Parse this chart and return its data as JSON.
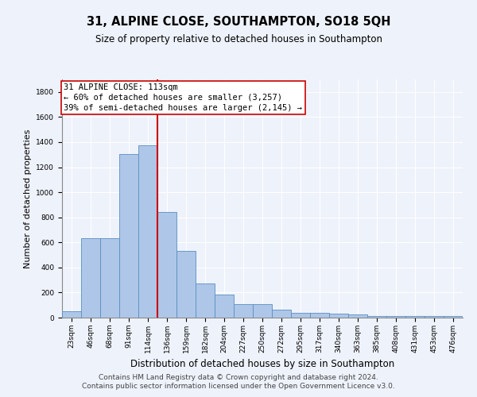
{
  "title": "31, ALPINE CLOSE, SOUTHAMPTON, SO18 5QH",
  "subtitle": "Size of property relative to detached houses in Southampton",
  "xlabel": "Distribution of detached houses by size in Southampton",
  "ylabel": "Number of detached properties",
  "categories": [
    "23sqm",
    "46sqm",
    "68sqm",
    "91sqm",
    "114sqm",
    "136sqm",
    "159sqm",
    "182sqm",
    "204sqm",
    "227sqm",
    "250sqm",
    "272sqm",
    "295sqm",
    "317sqm",
    "340sqm",
    "363sqm",
    "385sqm",
    "408sqm",
    "431sqm",
    "453sqm",
    "476sqm"
  ],
  "values": [
    50,
    635,
    635,
    1305,
    1375,
    845,
    530,
    275,
    185,
    105,
    105,
    65,
    35,
    35,
    30,
    25,
    15,
    15,
    10,
    10,
    15
  ],
  "bar_color": "#aec6e8",
  "bar_edge_color": "#5a8fc0",
  "vline_x_index": 4.5,
  "vline_color": "#cc0000",
  "annotation_text": "31 ALPINE CLOSE: 113sqm\n← 60% of detached houses are smaller (3,257)\n39% of semi-detached houses are larger (2,145) →",
  "annotation_box_color": "#ffffff",
  "annotation_box_edge_color": "#cc0000",
  "ylim": [
    0,
    1900
  ],
  "yticks": [
    0,
    200,
    400,
    600,
    800,
    1000,
    1200,
    1400,
    1600,
    1800
  ],
  "background_color": "#eef2fb",
  "grid_color": "#ffffff",
  "footer_line1": "Contains HM Land Registry data © Crown copyright and database right 2024.",
  "footer_line2": "Contains public sector information licensed under the Open Government Licence v3.0.",
  "title_fontsize": 10.5,
  "subtitle_fontsize": 8.5,
  "xlabel_fontsize": 8.5,
  "ylabel_fontsize": 8,
  "tick_fontsize": 6.5,
  "annotation_fontsize": 7.5,
  "footer_fontsize": 6.5
}
